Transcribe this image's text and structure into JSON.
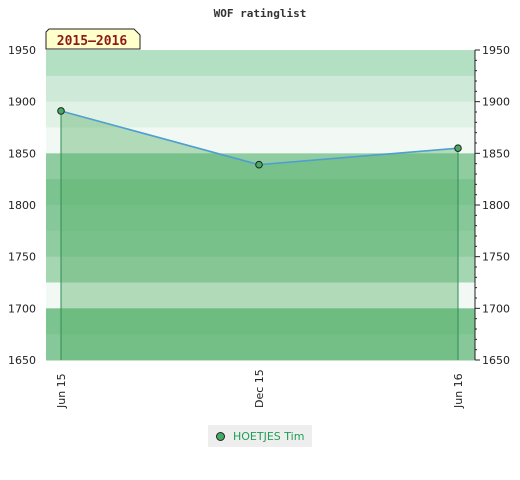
{
  "chart_data": {
    "type": "area",
    "title": "WOF ratinglist",
    "season_label": "2015–2016",
    "x": [
      "Jun 15",
      "Dec 15",
      "Jun 16"
    ],
    "series": [
      {
        "name": "HOETJES Tim",
        "values": [
          1891,
          1839,
          1855
        ]
      }
    ],
    "ylim": [
      1650,
      1950
    ],
    "yticks": [
      1650,
      1700,
      1750,
      1800,
      1850,
      1900,
      1950
    ],
    "grid": true,
    "legend_position": "bottom-center",
    "colors": {
      "line": "#4f9fcf",
      "area_fill": "#5fb36f",
      "drop_line": "#2e8b57",
      "marker": "#44aa66",
      "band_dark": "#7cc48f",
      "band_light": "#f2f9f4",
      "legend_text": "#1e9e56"
    }
  }
}
